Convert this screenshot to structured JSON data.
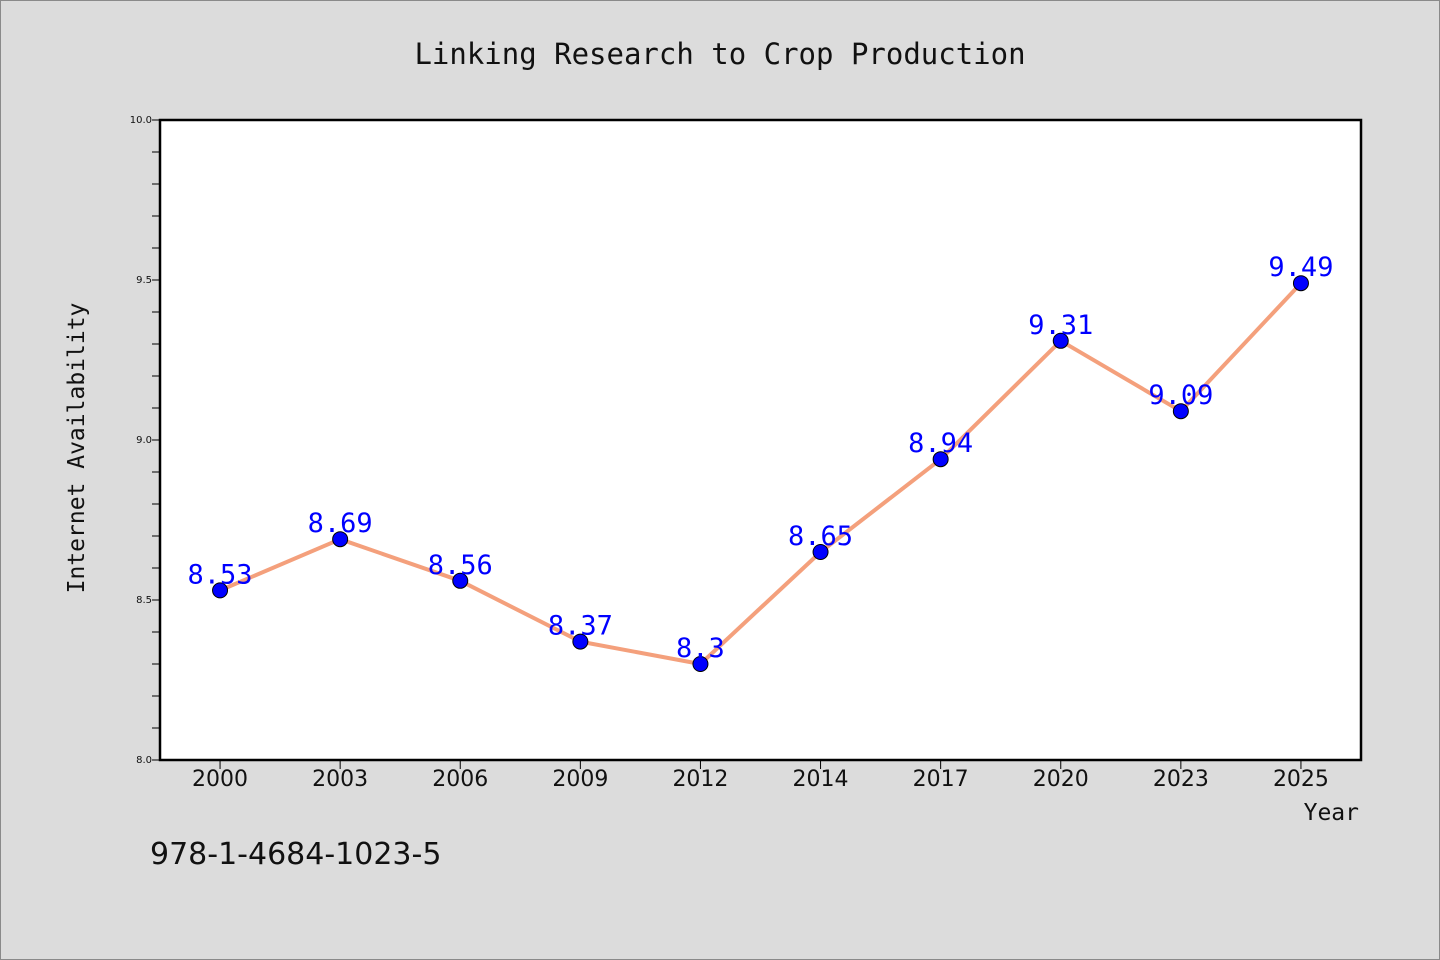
{
  "chart_data": {
    "type": "line",
    "title": "Linking Research to Crop Production",
    "xlabel": "Year",
    "ylabel": "Internet Availability",
    "categories": [
      "2000",
      "2003",
      "2006",
      "2009",
      "2012",
      "2014",
      "2017",
      "2020",
      "2023",
      "2025"
    ],
    "values": [
      8.53,
      8.69,
      8.56,
      8.37,
      8.3,
      8.65,
      8.94,
      9.31,
      9.09,
      9.49
    ],
    "data_labels": [
      "8.53",
      "8.69",
      "8.56",
      "8.37",
      "8.3",
      "8.65",
      "8.94",
      "9.31",
      "9.09",
      "9.49"
    ],
    "ylim": [
      8.0,
      10.0
    ],
    "yticks": [
      "8.0",
      "8.5",
      "9.0",
      "9.5",
      "10.0"
    ],
    "grid": false,
    "legend": "none",
    "line_color": "#f4a07c",
    "marker_color": "#0000ff",
    "label_color": "#0000ff"
  },
  "footer": {
    "isbn": "978-1-4684-1023-5"
  }
}
